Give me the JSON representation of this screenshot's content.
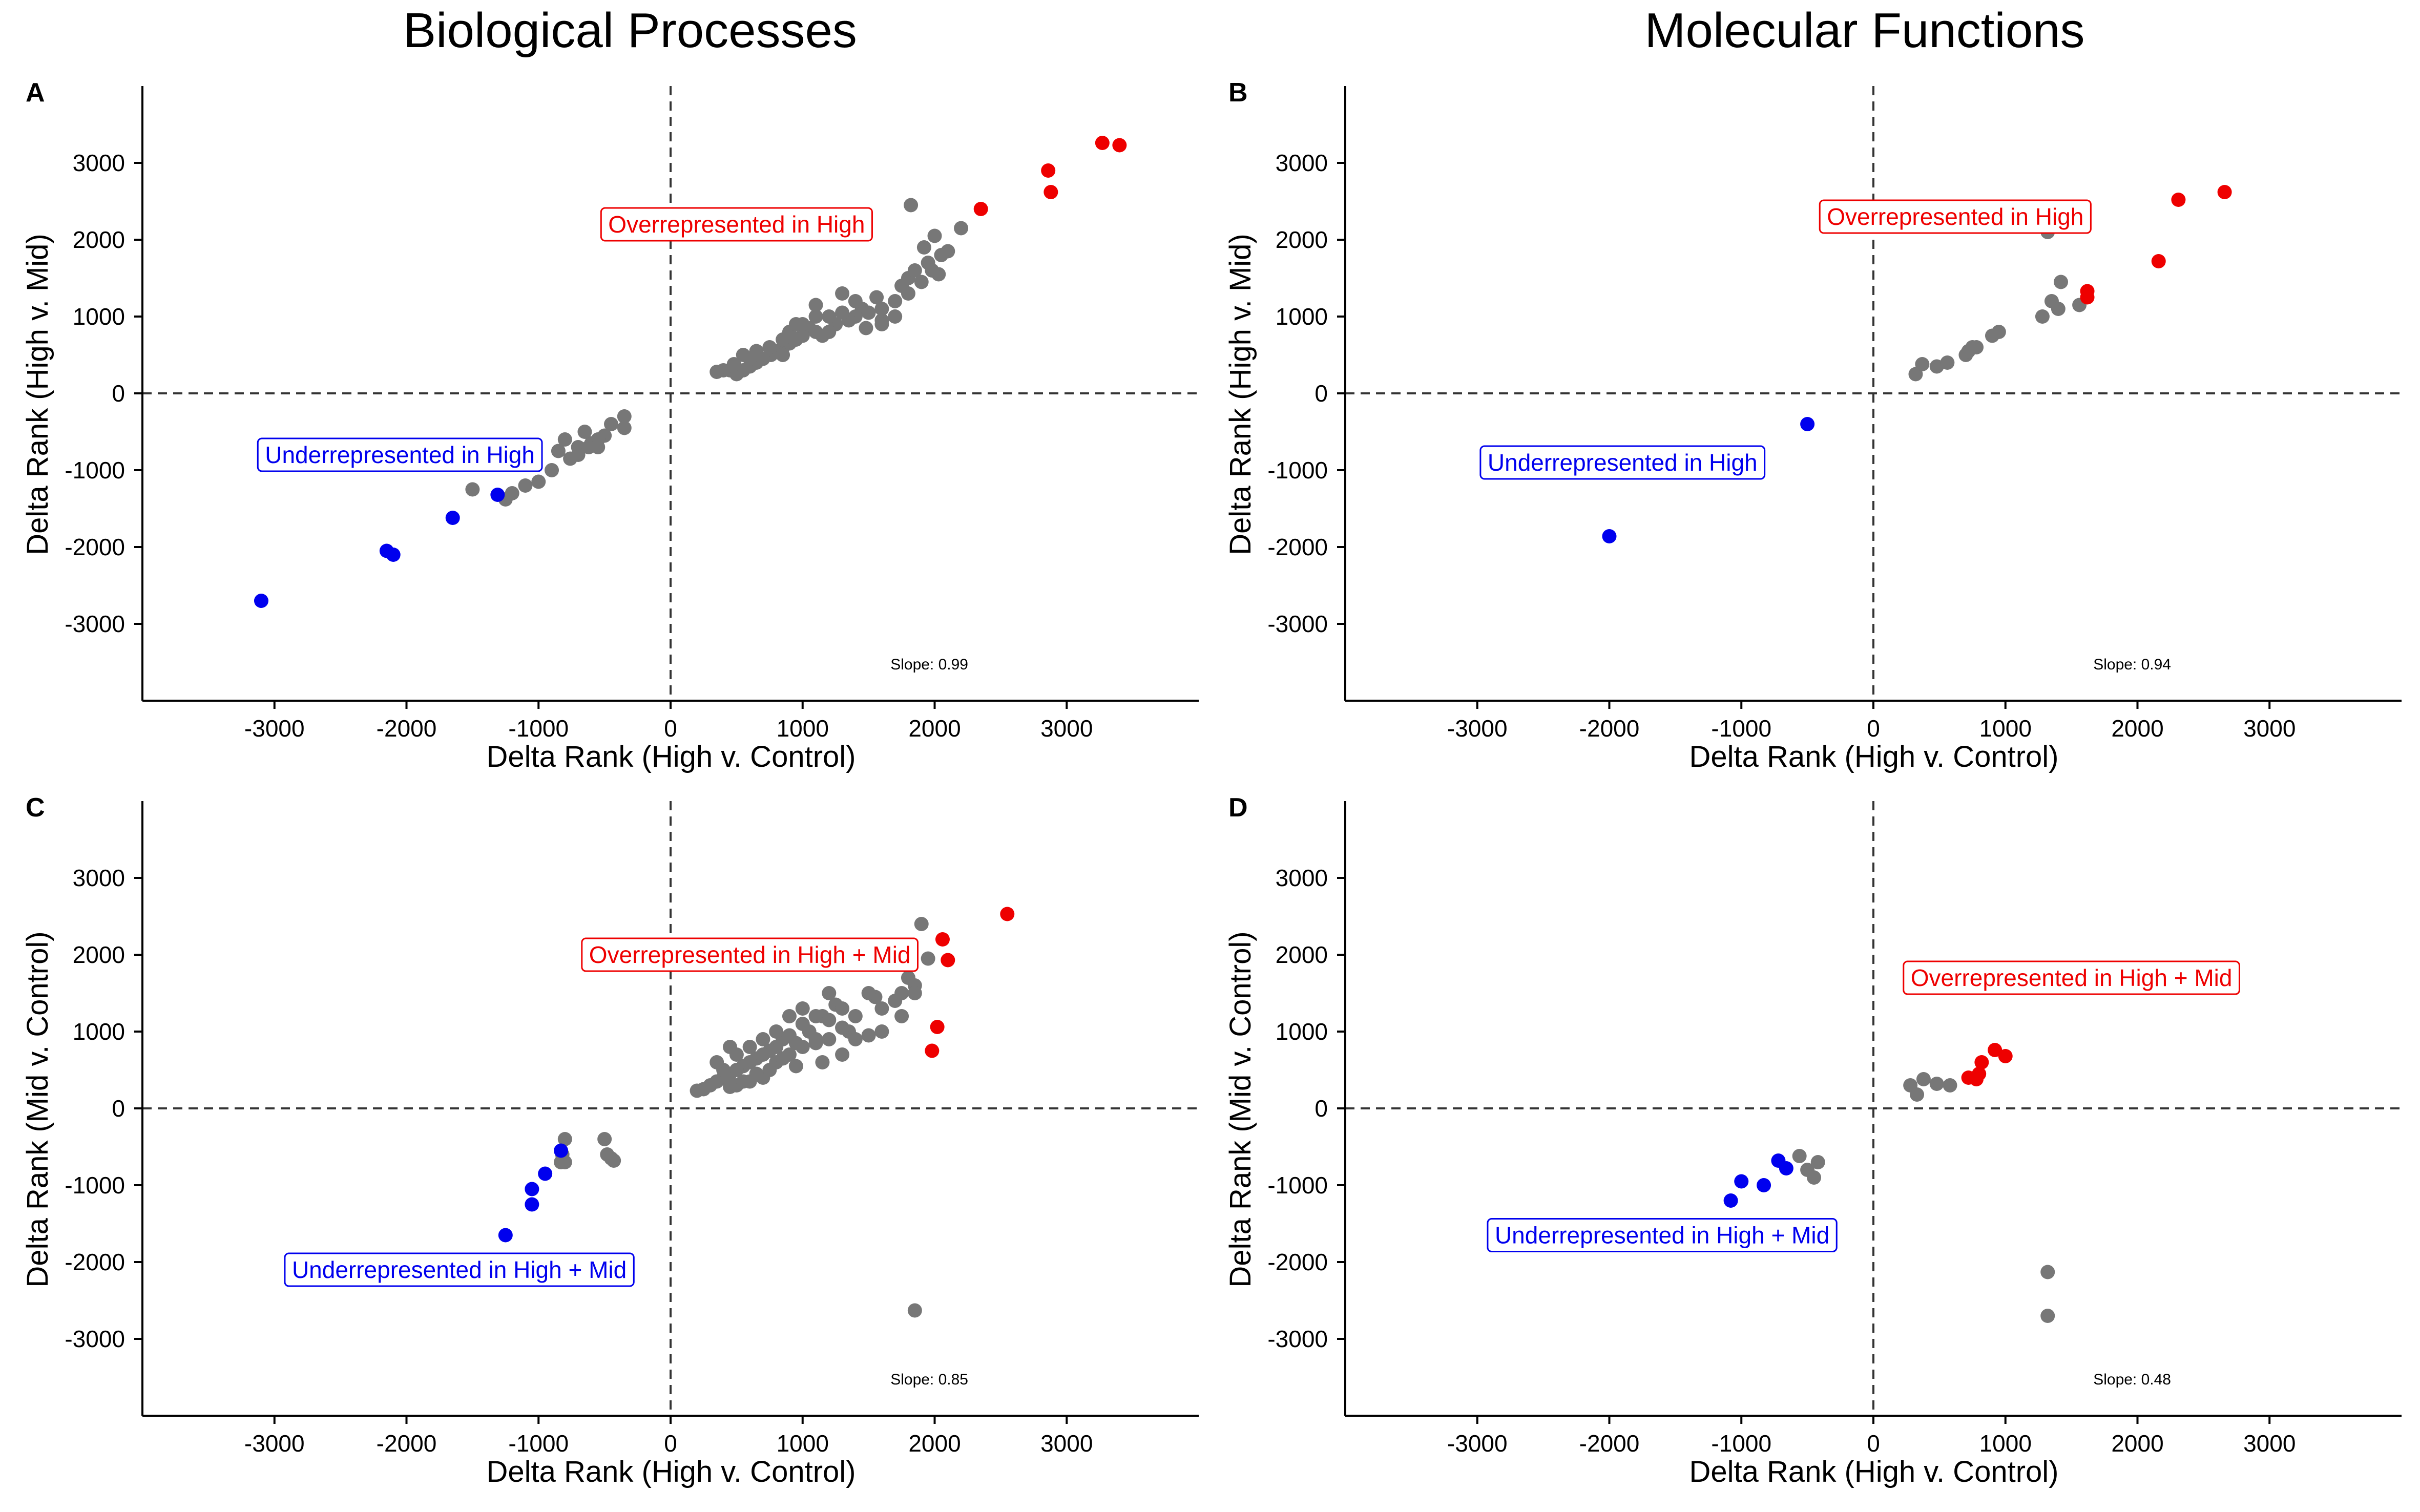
{
  "titles": {
    "biological": "Biological Processes",
    "molecular": "Molecular Functions"
  },
  "colors": {
    "over": "#ee0000",
    "under": "#0000ee",
    "neutral": "#777777"
  },
  "chart_data": [
    {
      "id": "A",
      "type": "scatter",
      "label": "A",
      "xlabel": "Delta Rank (High v. Control)",
      "ylabel": "Delta Rank (High v. Mid)",
      "xlim": [
        -4000,
        4000
      ],
      "ylim": [
        -4000,
        4000
      ],
      "xticks": [
        -3000,
        -2000,
        -1000,
        0,
        1000,
        2000,
        3000
      ],
      "yticks": [
        -3000,
        -2000,
        -1000,
        0,
        1000,
        2000,
        3000
      ],
      "slope_text": "Slope: 0.99",
      "annotations": {
        "over": {
          "text": "Overrepresented in High",
          "x": 500,
          "y": 2200
        },
        "under": {
          "text": "Underrepresented in High",
          "x": -2050,
          "y": -800
        }
      },
      "groups": {
        "over": [
          [
            2350,
            2400
          ],
          [
            2860,
            2900
          ],
          [
            2880,
            2620
          ],
          [
            3270,
            3260
          ],
          [
            3400,
            3230
          ]
        ],
        "under": [
          [
            -3100,
            -2700
          ],
          [
            -2150,
            -2050
          ],
          [
            -2100,
            -2100
          ],
          [
            -1650,
            -1620
          ],
          [
            -1310,
            -1320
          ]
        ],
        "neutral": [
          [
            1820,
            2450
          ],
          [
            2000,
            2050
          ],
          [
            1920,
            1900
          ],
          [
            2100,
            1850
          ],
          [
            2050,
            1800
          ],
          [
            1950,
            1700
          ],
          [
            2030,
            1550
          ],
          [
            1980,
            1600
          ],
          [
            1800,
            1500
          ],
          [
            1900,
            1450
          ],
          [
            2200,
            2150
          ],
          [
            1560,
            1250
          ],
          [
            1700,
            1000
          ],
          [
            1600,
            950
          ],
          [
            1480,
            850
          ],
          [
            1450,
            1100
          ],
          [
            1400,
            1000
          ],
          [
            1300,
            1300
          ],
          [
            1250,
            900
          ],
          [
            1200,
            800
          ],
          [
            1150,
            750
          ],
          [
            1100,
            1000
          ],
          [
            1050,
            850
          ],
          [
            1000,
            750
          ],
          [
            950,
            700
          ],
          [
            900,
            650
          ],
          [
            850,
            600
          ],
          [
            800,
            550
          ],
          [
            760,
            500
          ],
          [
            700,
            450
          ],
          [
            650,
            400
          ],
          [
            600,
            350
          ],
          [
            550,
            300
          ],
          [
            500,
            250
          ],
          [
            450,
            300
          ],
          [
            400,
            300
          ],
          [
            350,
            280
          ],
          [
            650,
            550
          ],
          [
            750,
            600
          ],
          [
            850,
            700
          ],
          [
            1000,
            900
          ],
          [
            1100,
            800
          ],
          [
            1350,
            950
          ],
          [
            1600,
            900
          ],
          [
            550,
            500
          ],
          [
            850,
            500
          ],
          [
            900,
            800
          ],
          [
            1300,
            1050
          ],
          [
            1500,
            1050
          ],
          [
            1700,
            1200
          ],
          [
            1800,
            1300
          ],
          [
            1750,
            1400
          ],
          [
            1850,
            1600
          ],
          [
            1200,
            1000
          ],
          [
            1400,
            1200
          ],
          [
            1600,
            1100
          ],
          [
            1100,
            1150
          ],
          [
            950,
            900
          ],
          [
            600,
            450
          ],
          [
            480,
            380
          ],
          [
            -350,
            -300
          ],
          [
            -350,
            -450
          ],
          [
            -450,
            -400
          ],
          [
            -500,
            -550
          ],
          [
            -600,
            -650
          ],
          [
            -700,
            -700
          ],
          [
            -650,
            -500
          ],
          [
            -550,
            -600
          ],
          [
            -800,
            -600
          ],
          [
            -850,
            -750
          ],
          [
            -900,
            -1000
          ],
          [
            -1000,
            -1150
          ],
          [
            -1100,
            -1200
          ],
          [
            -1200,
            -1300
          ],
          [
            -1250,
            -1380
          ],
          [
            -1500,
            -1250
          ],
          [
            -760,
            -850
          ],
          [
            -620,
            -700
          ],
          [
            -700,
            -800
          ],
          [
            -550,
            -700
          ]
        ]
      }
    },
    {
      "id": "B",
      "type": "scatter",
      "label": "B",
      "xlabel": "Delta Rank (High v. Control)",
      "ylabel": "Delta Rank (High v. Mid)",
      "xlim": [
        -4000,
        4000
      ],
      "ylim": [
        -4000,
        4000
      ],
      "xticks": [
        -3000,
        -2000,
        -1000,
        0,
        1000,
        2000,
        3000
      ],
      "yticks": [
        -3000,
        -2000,
        -1000,
        0,
        1000,
        2000,
        3000
      ],
      "slope_text": "Slope: 0.94",
      "annotations": {
        "over": {
          "text": "Overrepresented in High",
          "x": 620,
          "y": 2300
        },
        "under": {
          "text": "Underrepresented in High",
          "x": -1900,
          "y": -900
        }
      },
      "groups": {
        "over": [
          [
            1620,
            1250
          ],
          [
            1620,
            1330
          ],
          [
            2160,
            1720
          ],
          [
            2310,
            2520
          ],
          [
            2660,
            2620
          ]
        ],
        "under": [
          [
            -2000,
            -1860
          ],
          [
            -500,
            -400
          ]
        ],
        "neutral": [
          [
            320,
            250
          ],
          [
            370,
            380
          ],
          [
            480,
            350
          ],
          [
            560,
            400
          ],
          [
            700,
            500
          ],
          [
            720,
            550
          ],
          [
            780,
            600
          ],
          [
            900,
            750
          ],
          [
            950,
            800
          ],
          [
            1280,
            1000
          ],
          [
            1350,
            1200
          ],
          [
            1420,
            1450
          ],
          [
            1400,
            1100
          ],
          [
            1560,
            1150
          ],
          [
            1320,
            2100
          ],
          [
            750,
            600
          ]
        ]
      }
    },
    {
      "id": "C",
      "type": "scatter",
      "label": "C",
      "xlabel": "Delta Rank (High v. Control)",
      "ylabel": "Mid v. Control",
      "ylabel_full": "Delta Rank (Mid v. Control)",
      "xlim": [
        -4000,
        4000
      ],
      "ylim": [
        -4000,
        4000
      ],
      "xticks": [
        -3000,
        -2000,
        -1000,
        0,
        1000,
        2000,
        3000
      ],
      "yticks": [
        -3000,
        -2000,
        -1000,
        0,
        1000,
        2000,
        3000
      ],
      "slope_text": "Slope: 0.85",
      "annotations": {
        "over": {
          "text": "Overrepresented in High + Mid",
          "x": 600,
          "y": 2000
        },
        "under": {
          "text": "Underrepresented in High + Mid",
          "x": -1600,
          "y": -2100
        }
      },
      "groups": {
        "over": [
          [
            2550,
            2530
          ],
          [
            2060,
            2200
          ],
          [
            2100,
            1930
          ],
          [
            2020,
            1060
          ],
          [
            1980,
            750
          ]
        ],
        "under": [
          [
            -1250,
            -1650
          ],
          [
            -1050,
            -1050
          ],
          [
            -1050,
            -1250
          ],
          [
            -950,
            -850
          ],
          [
            -830,
            -550
          ]
        ],
        "neutral": [
          [
            1900,
            2400
          ],
          [
            1950,
            1950
          ],
          [
            1800,
            1700
          ],
          [
            1750,
            1500
          ],
          [
            1850,
            1600
          ],
          [
            1700,
            1400
          ],
          [
            1600,
            1300
          ],
          [
            1550,
            1450
          ],
          [
            1500,
            1500
          ],
          [
            1400,
            1200
          ],
          [
            1350,
            1000
          ],
          [
            1300,
            1050
          ],
          [
            1250,
            1350
          ],
          [
            1200,
            1500
          ],
          [
            1150,
            1200
          ],
          [
            1100,
            900
          ],
          [
            1050,
            1000
          ],
          [
            1000,
            1100
          ],
          [
            950,
            850
          ],
          [
            900,
            950
          ],
          [
            850,
            900
          ],
          [
            800,
            800
          ],
          [
            750,
            750
          ],
          [
            700,
            700
          ],
          [
            650,
            650
          ],
          [
            600,
            600
          ],
          [
            550,
            550
          ],
          [
            500,
            500
          ],
          [
            450,
            450
          ],
          [
            400,
            400
          ],
          [
            350,
            350
          ],
          [
            300,
            300
          ],
          [
            250,
            250
          ],
          [
            200,
            230
          ],
          [
            500,
            300
          ],
          [
            600,
            350
          ],
          [
            700,
            400
          ],
          [
            800,
            600
          ],
          [
            900,
            700
          ],
          [
            1000,
            800
          ],
          [
            1100,
            850
          ],
          [
            1200,
            900
          ],
          [
            1300,
            1300
          ],
          [
            1400,
            900
          ],
          [
            1500,
            950
          ],
          [
            1600,
            1000
          ],
          [
            1750,
            1200
          ],
          [
            1850,
            1500
          ],
          [
            400,
            500
          ],
          [
            500,
            700
          ],
          [
            600,
            800
          ],
          [
            700,
            900
          ],
          [
            800,
            1000
          ],
          [
            900,
            1200
          ],
          [
            1000,
            1300
          ],
          [
            1100,
            1200
          ],
          [
            1200,
            1150
          ],
          [
            350,
            600
          ],
          [
            450,
            800
          ],
          [
            1850,
            -2630
          ],
          [
            -800,
            -400
          ],
          [
            -820,
            -600
          ],
          [
            -830,
            -700
          ],
          [
            -800,
            -700
          ],
          [
            -500,
            -400
          ],
          [
            -480,
            -600
          ],
          [
            -450,
            -650
          ],
          [
            -430,
            -680
          ],
          [
            1300,
            700
          ],
          [
            1150,
            600
          ],
          [
            950,
            550
          ],
          [
            850,
            650
          ],
          [
            750,
            500
          ],
          [
            650,
            450
          ],
          [
            550,
            350
          ],
          [
            450,
            280
          ]
        ]
      }
    },
    {
      "id": "D",
      "type": "scatter",
      "label": "D",
      "xlabel": "Delta Rank (High v. Control)",
      "ylabel": "Delta Rank (Mid v. Control)",
      "xlim": [
        -4000,
        4000
      ],
      "ylim": [
        -4000,
        4000
      ],
      "xticks": [
        -3000,
        -2000,
        -1000,
        0,
        1000,
        2000,
        3000
      ],
      "yticks": [
        -3000,
        -2000,
        -1000,
        0,
        1000,
        2000,
        3000
      ],
      "slope_text": "Slope: 0.48",
      "annotations": {
        "over": {
          "text": "Overrepresented in High + Mid",
          "x": 1500,
          "y": 1700
        },
        "under": {
          "text": "Underrepresented in High + Mid",
          "x": -1600,
          "y": -1650
        }
      },
      "groups": {
        "over": [
          [
            720,
            400
          ],
          [
            780,
            380
          ],
          [
            800,
            450
          ],
          [
            820,
            600
          ],
          [
            920,
            760
          ],
          [
            1000,
            680
          ]
        ],
        "under": [
          [
            -1080,
            -1200
          ],
          [
            -1000,
            -950
          ],
          [
            -830,
            -1000
          ],
          [
            -720,
            -680
          ],
          [
            -660,
            -780
          ]
        ],
        "neutral": [
          [
            280,
            300
          ],
          [
            330,
            180
          ],
          [
            380,
            380
          ],
          [
            480,
            320
          ],
          [
            580,
            300
          ],
          [
            -560,
            -620
          ],
          [
            -500,
            -800
          ],
          [
            -450,
            -900
          ],
          [
            -420,
            -700
          ],
          [
            1320,
            -2130
          ],
          [
            1320,
            -2700
          ]
        ]
      }
    }
  ]
}
